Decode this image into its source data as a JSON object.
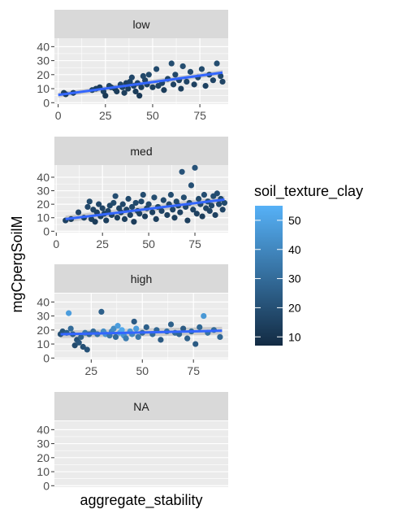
{
  "chart_data": {
    "type": "scatter",
    "title": "",
    "xlabel": "aggregate_stability",
    "ylabel": "mgCpergSoilM",
    "legend": {
      "title": "soil_texture_clay",
      "position": "right",
      "ticks": [
        10,
        20,
        30,
        40,
        50
      ],
      "range": [
        7,
        55
      ],
      "color_low": "#132B43",
      "color_high": "#56B1F7"
    },
    "smooth_color": "#3366FF",
    "ribbon_color": "#999999",
    "grid": true,
    "panels": [
      {
        "label": "low",
        "xlim": [
          -2,
          90
        ],
        "ylim": [
          -1,
          46
        ],
        "xticks": [
          0,
          25,
          50,
          75
        ],
        "yticks": [
          0,
          10,
          20,
          30,
          40
        ],
        "trend": {
          "x": [
            0,
            87
          ],
          "y": [
            5.5,
            21.5
          ],
          "band": 1.8
        },
        "points": [
          [
            3,
            7,
            14
          ],
          [
            4,
            6,
            12
          ],
          [
            8,
            7,
            15
          ],
          [
            18,
            9,
            16
          ],
          [
            20,
            10,
            14
          ],
          [
            22,
            11,
            13
          ],
          [
            24,
            8,
            15
          ],
          [
            25,
            5,
            12
          ],
          [
            27,
            12,
            16
          ],
          [
            28,
            11,
            15
          ],
          [
            30,
            10,
            14
          ],
          [
            31,
            8,
            13
          ],
          [
            33,
            13,
            17
          ],
          [
            34,
            11,
            16
          ],
          [
            35,
            7,
            14
          ],
          [
            36,
            14,
            15
          ],
          [
            37,
            10,
            14
          ],
          [
            38,
            15,
            16
          ],
          [
            39,
            18,
            17
          ],
          [
            40,
            12,
            15
          ],
          [
            41,
            8,
            13
          ],
          [
            42,
            14,
            16
          ],
          [
            43,
            5,
            12
          ],
          [
            44,
            11,
            14
          ],
          [
            45,
            19,
            17
          ],
          [
            46,
            16,
            16
          ],
          [
            47,
            13,
            15
          ],
          [
            48,
            20,
            18
          ],
          [
            50,
            11,
            14
          ],
          [
            52,
            24,
            18
          ],
          [
            53,
            12,
            15
          ],
          [
            55,
            14,
            16
          ],
          [
            56,
            9,
            13
          ],
          [
            58,
            17,
            16
          ],
          [
            60,
            28,
            19
          ],
          [
            61,
            13,
            15
          ],
          [
            62,
            20,
            17
          ],
          [
            64,
            16,
            16
          ],
          [
            65,
            10,
            14
          ],
          [
            66,
            26,
            19
          ],
          [
            68,
            15,
            16
          ],
          [
            70,
            22,
            18
          ],
          [
            72,
            13,
            15
          ],
          [
            74,
            18,
            17
          ],
          [
            76,
            24,
            18
          ],
          [
            78,
            12,
            15
          ],
          [
            80,
            20,
            17
          ],
          [
            82,
            16,
            16
          ],
          [
            84,
            28,
            19
          ],
          [
            86,
            19,
            17
          ],
          [
            87,
            15,
            16
          ]
        ]
      },
      {
        "label": "med",
        "xlim": [
          -1,
          93
        ],
        "ylim": [
          -1,
          49
        ],
        "xticks": [
          0,
          25,
          50,
          75
        ],
        "yticks": [
          0,
          10,
          20,
          30,
          40
        ],
        "trend": {
          "x": [
            5,
            91
          ],
          "y": [
            9,
            23.5
          ],
          "band": 2.5
        },
        "points": [
          [
            5,
            8,
            15
          ],
          [
            8,
            9,
            14
          ],
          [
            12,
            14,
            16
          ],
          [
            15,
            10,
            15
          ],
          [
            17,
            18,
            17
          ],
          [
            18,
            22,
            18
          ],
          [
            19,
            9,
            14
          ],
          [
            20,
            16,
            16
          ],
          [
            21,
            7,
            13
          ],
          [
            22,
            14,
            15
          ],
          [
            23,
            20,
            17
          ],
          [
            24,
            11,
            15
          ],
          [
            25,
            17,
            16
          ],
          [
            26,
            13,
            15
          ],
          [
            27,
            8,
            14
          ],
          [
            28,
            15,
            16
          ],
          [
            29,
            19,
            17
          ],
          [
            30,
            12,
            15
          ],
          [
            31,
            21,
            18
          ],
          [
            32,
            26,
            19
          ],
          [
            33,
            10,
            14
          ],
          [
            34,
            17,
            16
          ],
          [
            35,
            14,
            15
          ],
          [
            36,
            20,
            17
          ],
          [
            37,
            9,
            14
          ],
          [
            38,
            16,
            16
          ],
          [
            39,
            24,
            18
          ],
          [
            40,
            12,
            15
          ],
          [
            41,
            18,
            17
          ],
          [
            42,
            7,
            13
          ],
          [
            43,
            21,
            18
          ],
          [
            44,
            15,
            16
          ],
          [
            45,
            13,
            15
          ],
          [
            46,
            22,
            18
          ],
          [
            47,
            27,
            19
          ],
          [
            48,
            11,
            14
          ],
          [
            49,
            17,
            16
          ],
          [
            50,
            20,
            17
          ],
          [
            52,
            14,
            15
          ],
          [
            53,
            25,
            19
          ],
          [
            54,
            9,
            14
          ],
          [
            55,
            18,
            17
          ],
          [
            57,
            15,
            16
          ],
          [
            58,
            23,
            18
          ],
          [
            60,
            12,
            15
          ],
          [
            61,
            20,
            17
          ],
          [
            62,
            27,
            19
          ],
          [
            63,
            16,
            16
          ],
          [
            64,
            10,
            14
          ],
          [
            65,
            22,
            18
          ],
          [
            66,
            19,
            17
          ],
          [
            67,
            14,
            15
          ],
          [
            68,
            44,
            21
          ],
          [
            69,
            25,
            19
          ],
          [
            70,
            18,
            17
          ],
          [
            71,
            8,
            14
          ],
          [
            72,
            21,
            18
          ],
          [
            73,
            34,
            20
          ],
          [
            74,
            16,
            16
          ],
          [
            75,
            47,
            21
          ],
          [
            76,
            13,
            15
          ],
          [
            77,
            24,
            18
          ],
          [
            78,
            20,
            17
          ],
          [
            79,
            11,
            14
          ],
          [
            80,
            27,
            19
          ],
          [
            81,
            17,
            16
          ],
          [
            82,
            22,
            18
          ],
          [
            83,
            15,
            16
          ],
          [
            84,
            19,
            17
          ],
          [
            85,
            26,
            19
          ],
          [
            86,
            12,
            15
          ],
          [
            87,
            28,
            19
          ],
          [
            88,
            20,
            17
          ],
          [
            89,
            24,
            18
          ],
          [
            90,
            16,
            16
          ],
          [
            91,
            21,
            18
          ]
        ]
      },
      {
        "label": "high",
        "xlim": [
          7,
          92
        ],
        "ylim": [
          -1,
          46
        ],
        "xticks": [
          25,
          50,
          75
        ],
        "yticks": [
          0,
          10,
          20,
          30,
          40
        ],
        "trend": {
          "x": [
            10,
            89
          ],
          "y": [
            17,
            19.5
          ],
          "band": 2.8
        },
        "points": [
          [
            10,
            17,
            20
          ],
          [
            11,
            19,
            22
          ],
          [
            13,
            18,
            25
          ],
          [
            14,
            32,
            48
          ],
          [
            15,
            21,
            30
          ],
          [
            16,
            17,
            24
          ],
          [
            17,
            9,
            18
          ],
          [
            18,
            13,
            20
          ],
          [
            19,
            11,
            22
          ],
          [
            20,
            15,
            26
          ],
          [
            21,
            8,
            20
          ],
          [
            22,
            18,
            34
          ],
          [
            23,
            6,
            21
          ],
          [
            24,
            17,
            28
          ],
          [
            26,
            19,
            30
          ],
          [
            28,
            17,
            32
          ],
          [
            30,
            33,
            26
          ],
          [
            31,
            19,
            42
          ],
          [
            32,
            17,
            44
          ],
          [
            34,
            16,
            34
          ],
          [
            35,
            19,
            40
          ],
          [
            36,
            21,
            42
          ],
          [
            37,
            15,
            30
          ],
          [
            38,
            23,
            48
          ],
          [
            39,
            18,
            50
          ],
          [
            40,
            20,
            52
          ],
          [
            41,
            16,
            44
          ],
          [
            42,
            14,
            36
          ],
          [
            44,
            19,
            46
          ],
          [
            45,
            17,
            40
          ],
          [
            46,
            26,
            24
          ],
          [
            47,
            21,
            48
          ],
          [
            48,
            15,
            34
          ],
          [
            50,
            18,
            30
          ],
          [
            52,
            22,
            26
          ],
          [
            55,
            17,
            30
          ],
          [
            57,
            20,
            28
          ],
          [
            59,
            13,
            24
          ],
          [
            62,
            19,
            32
          ],
          [
            64,
            24,
            26
          ],
          [
            66,
            18,
            30
          ],
          [
            68,
            17,
            28
          ],
          [
            70,
            21,
            24
          ],
          [
            72,
            14,
            26
          ],
          [
            74,
            19,
            30
          ],
          [
            76,
            10,
            24
          ],
          [
            78,
            22,
            28
          ],
          [
            80,
            30,
            46
          ],
          [
            82,
            18,
            32
          ],
          [
            85,
            20,
            30
          ],
          [
            88,
            15,
            28
          ]
        ]
      },
      {
        "label": "NA",
        "xlim": [
          0,
          1
        ],
        "ylim": [
          -1,
          46
        ],
        "xticks": [],
        "yticks": [
          0,
          10,
          20,
          30,
          40
        ],
        "trend": null,
        "points": []
      }
    ]
  }
}
